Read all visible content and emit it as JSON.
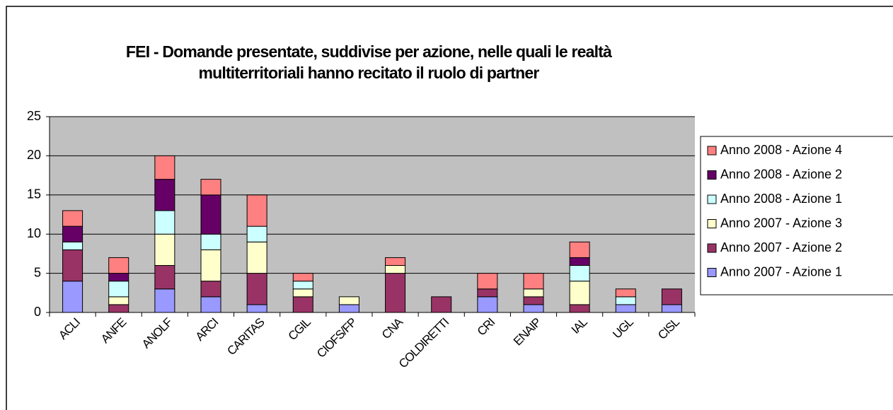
{
  "chart_data": {
    "type": "stacked_bar",
    "title": [
      "FEI - Domande presentate, suddivise per azione, nelle quali le realtà",
      "multiterritoriali hanno recitato il ruolo di partner"
    ],
    "categories": [
      "ACLI",
      "ANFE",
      "ANOLF",
      "ARCI",
      "CARITAS",
      "CGIL",
      "CIOFS/FP",
      "CNA",
      "COLDIRETTI",
      "CRI",
      "ENAIP",
      "IAL",
      "UGL",
      "CISL"
    ],
    "series": [
      {
        "name": "Anno 2007 - Azione 1",
        "color": "#9999ff",
        "values": [
          4,
          0,
          3,
          2,
          1,
          0,
          1,
          0,
          0,
          2,
          1,
          0,
          1,
          1
        ]
      },
      {
        "name": "Anno 2007 - Azione 2",
        "color": "#993366",
        "values": [
          4,
          1,
          3,
          2,
          4,
          2,
          0,
          5,
          2,
          1,
          1,
          1,
          0,
          2
        ]
      },
      {
        "name": "Anno 2007 - Azione 3",
        "color": "#ffffcc",
        "values": [
          0,
          1,
          4,
          4,
          4,
          1,
          1,
          1,
          0,
          0,
          1,
          3,
          0,
          0
        ]
      },
      {
        "name": "Anno 2008 - Azione 1",
        "color": "#ccffff",
        "values": [
          1,
          2,
          3,
          2,
          2,
          1,
          0,
          0,
          0,
          0,
          0,
          2,
          1,
          0
        ]
      },
      {
        "name": "Anno 2008 - Azione 2",
        "color": "#660066",
        "values": [
          2,
          1,
          4,
          5,
          0,
          0,
          0,
          0,
          0,
          0,
          0,
          1,
          0,
          0
        ]
      },
      {
        "name": "Anno 2008 - Azione 4",
        "color": "#ff8080",
        "values": [
          2,
          2,
          3,
          2,
          4,
          1,
          0,
          1,
          0,
          2,
          2,
          2,
          1,
          0
        ]
      }
    ],
    "ylim": [
      0,
      25
    ],
    "yticks": [
      0,
      5,
      10,
      15,
      20,
      25
    ],
    "grid": true,
    "legend": "right"
  }
}
